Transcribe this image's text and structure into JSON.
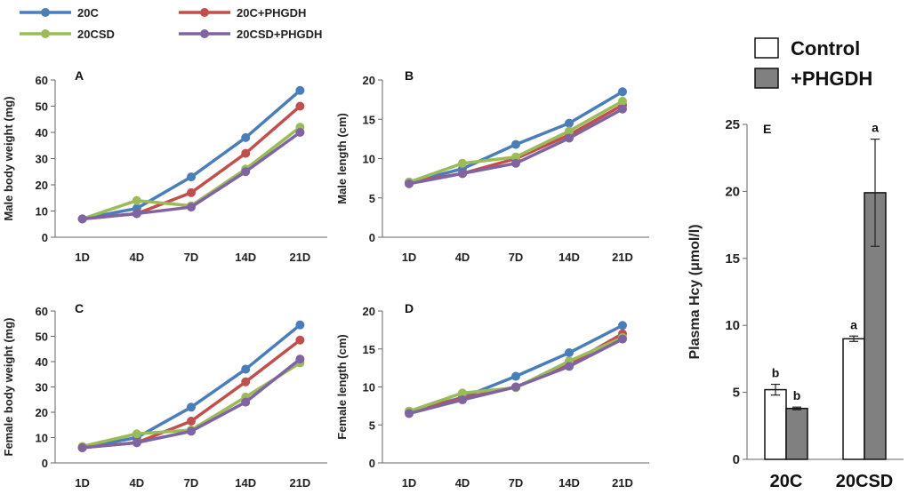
{
  "colors": {
    "20C": "#4a7ebb",
    "20C+PHGDH": "#c0504d",
    "20CSD": "#9bbb59",
    "20CSD+PHGDH": "#8064a2",
    "control_fill": "#ffffff",
    "phgdh_fill": "#808080"
  },
  "legend_lines": [
    "20C",
    "20C+PHGDH",
    "20CSD",
    "20CSD+PHGDH"
  ],
  "legend_bars": [
    "Control",
    "+PHGDH"
  ],
  "chart_data": [
    {
      "id": "A",
      "type": "line",
      "panel_label": "A",
      "ylabel": "Male body weight (mg)",
      "categories": [
        "1D",
        "4D",
        "7D",
        "14D",
        "21D"
      ],
      "ylim": [
        0,
        60
      ],
      "yticks": [
        0,
        10,
        20,
        30,
        40,
        50,
        60
      ],
      "series": [
        {
          "name": "20C",
          "values": [
            7,
            11,
            23,
            38,
            56
          ]
        },
        {
          "name": "20C+PHGDH",
          "values": [
            7,
            9,
            17,
            32,
            50
          ]
        },
        {
          "name": "20CSD",
          "values": [
            7,
            14,
            12,
            26,
            42
          ]
        },
        {
          "name": "20CSD+PHGDH",
          "values": [
            7,
            9,
            11.5,
            25,
            40
          ]
        }
      ]
    },
    {
      "id": "B",
      "type": "line",
      "panel_label": "B",
      "ylabel": "Male length (cm)",
      "categories": [
        "1D",
        "4D",
        "7D",
        "14D",
        "21D"
      ],
      "ylim": [
        0,
        20
      ],
      "yticks": [
        0,
        5,
        10,
        15,
        20
      ],
      "series": [
        {
          "name": "20C",
          "values": [
            7,
            8.7,
            11.8,
            14.5,
            18.5
          ]
        },
        {
          "name": "20C+PHGDH",
          "values": [
            7,
            8.1,
            10,
            13,
            16.8
          ]
        },
        {
          "name": "20CSD",
          "values": [
            7,
            9.4,
            10.2,
            13.5,
            17.3
          ]
        },
        {
          "name": "20CSD+PHGDH",
          "values": [
            6.8,
            8.1,
            9.4,
            12.6,
            16.3
          ]
        }
      ]
    },
    {
      "id": "C",
      "type": "line",
      "panel_label": "C",
      "ylabel": "Female body weight (mg)",
      "categories": [
        "1D",
        "4D",
        "7D",
        "14D",
        "21D"
      ],
      "ylim": [
        0,
        60
      ],
      "yticks": [
        0,
        10,
        20,
        30,
        40,
        50,
        60
      ],
      "series": [
        {
          "name": "20C",
          "values": [
            6,
            10,
            22,
            37,
            54.5
          ]
        },
        {
          "name": "20C+PHGDH",
          "values": [
            6,
            8,
            16.5,
            32,
            48.5
          ]
        },
        {
          "name": "20CSD",
          "values": [
            6.5,
            11.5,
            13,
            26,
            39.5
          ]
        },
        {
          "name": "20CSD+PHGDH",
          "values": [
            6,
            8,
            12.5,
            24,
            41
          ]
        }
      ]
    },
    {
      "id": "D",
      "type": "line",
      "panel_label": "D",
      "ylabel": "Female length (cm)",
      "categories": [
        "1D",
        "4D",
        "7D",
        "14D",
        "21D"
      ],
      "ylim": [
        0,
        20
      ],
      "yticks": [
        0,
        5,
        10,
        15,
        20
      ],
      "series": [
        {
          "name": "20C",
          "values": [
            6.8,
            8.6,
            11.4,
            14.5,
            18.1
          ]
        },
        {
          "name": "20C+PHGDH",
          "values": [
            6.7,
            8.5,
            10,
            13,
            17
          ]
        },
        {
          "name": "20CSD",
          "values": [
            6.8,
            9.2,
            9.9,
            13.4,
            16.5
          ]
        },
        {
          "name": "20CSD+PHGDH",
          "values": [
            6.5,
            8.3,
            10,
            12.7,
            16.3
          ]
        }
      ]
    },
    {
      "id": "E",
      "type": "bar",
      "panel_label": "E",
      "ylabel": "Plasma Hcy (μmol/l)",
      "categories": [
        "20C",
        "20CSD"
      ],
      "ylim": [
        0,
        25
      ],
      "yticks": [
        0,
        5,
        10,
        15,
        20,
        25
      ],
      "series": [
        {
          "name": "Control",
          "values": [
            5.2,
            9.0
          ],
          "errors": [
            0.4,
            0.2
          ],
          "labels": [
            "b",
            "a"
          ]
        },
        {
          "name": "+PHGDH",
          "values": [
            3.8,
            19.9
          ],
          "errors": [
            0.1,
            4.0
          ],
          "labels": [
            "b",
            "a"
          ]
        }
      ]
    }
  ]
}
